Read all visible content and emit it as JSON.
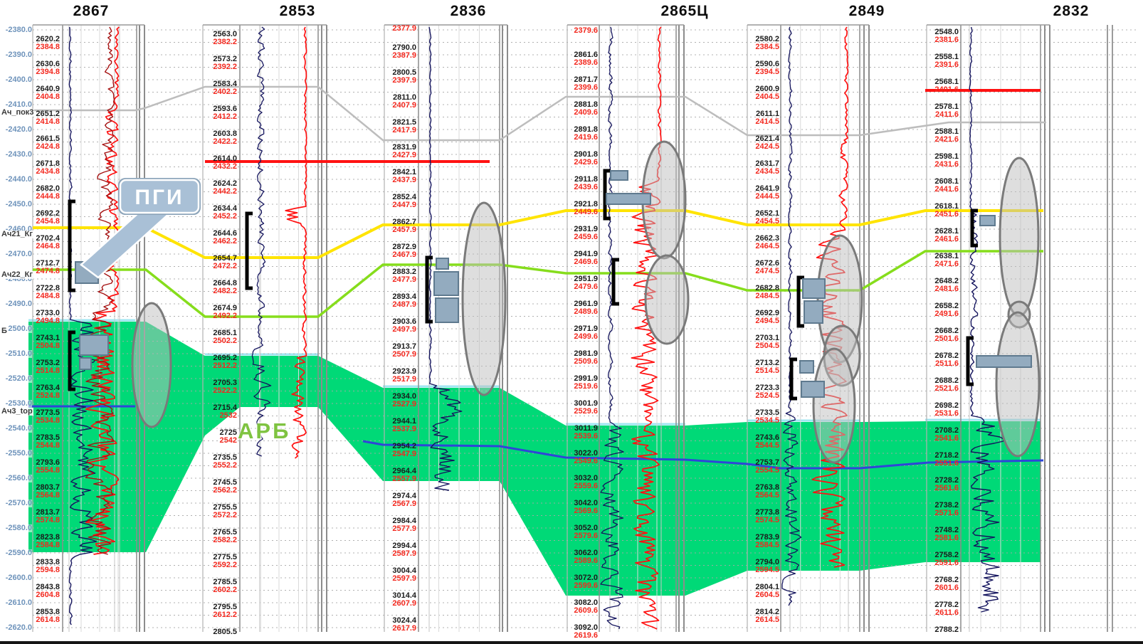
{
  "annotations": {
    "pgi": "ПГИ",
    "arb": "АРБ"
  },
  "depth_scale": [
    "-2380.0",
    "-2390.0",
    "-2400.0",
    "-2410.0",
    "-2420.0",
    "-2430.0",
    "-2440.0",
    "-2450.0",
    "-2460.0",
    "-2470.0",
    "-2480.0",
    "-2490.0",
    "-2500.0",
    "-2510.0",
    "-2520.0",
    "-2530.0",
    "-2540.0",
    "-2550.0",
    "-2560.0",
    "-2570.0",
    "-2580.0",
    "-2590.0",
    "-2600.0",
    "-2610.0",
    "-2620.0"
  ],
  "horizons": [
    "Ач_пок3",
    "Ач21_Кг",
    "Ач22_Кг",
    "Б",
    "Ач3_top"
  ],
  "wells": [
    {
      "name": "2867",
      "top_tvd": "",
      "rows": [
        [
          "2620.2",
          "2384.8"
        ],
        [
          "2630.6",
          "2394.8"
        ],
        [
          "2640.9",
          "2404.8"
        ],
        [
          "2651.2",
          "2414.8"
        ],
        [
          "2661.5",
          "2424.8"
        ],
        [
          "2671.8",
          "2434.8"
        ],
        [
          "2682.0",
          "2444.8"
        ],
        [
          "2692.2",
          "2454.8"
        ],
        [
          "2702.4",
          "2464.8"
        ],
        [
          "2712.7",
          "2474.8"
        ],
        [
          "2722.8",
          "2484.8"
        ],
        [
          "2733.0",
          "2494.8"
        ],
        [
          "2743.1",
          "2504.8"
        ],
        [
          "2753.2",
          "2514.8"
        ],
        [
          "2763.4",
          "2524.8"
        ],
        [
          "2773.5",
          "2534.8"
        ],
        [
          "2783.5",
          "2544.8"
        ],
        [
          "2793.6",
          "2554.8"
        ],
        [
          "2803.7",
          "2564.8"
        ],
        [
          "2813.7",
          "2574.8"
        ],
        [
          "2823.8",
          "2584.8"
        ],
        [
          "2833.8",
          "2594.8"
        ],
        [
          "2843.8",
          "2604.8"
        ],
        [
          "2853.8",
          "2614.8"
        ]
      ]
    },
    {
      "name": "2853",
      "top_tvd": "",
      "rows": [
        [
          "2563.0",
          "2382.2"
        ],
        [
          "2573.2",
          "2392.2"
        ],
        [
          "2583.4",
          "2402.2"
        ],
        [
          "2593.6",
          "2412.2"
        ],
        [
          "2603.8",
          "2422.2"
        ],
        [
          "2614.0",
          "2432.2"
        ],
        [
          "2624.2",
          "2442.2"
        ],
        [
          "2634.4",
          "2452.2"
        ],
        [
          "2644.6",
          "2462.2"
        ],
        [
          "2654.7",
          "2472.2"
        ],
        [
          "2664.8",
          "2482.2"
        ],
        [
          "2674.9",
          "2492.2"
        ],
        [
          "2685.1",
          "2502.2"
        ],
        [
          "2695.2",
          "2512.2"
        ],
        [
          "2705.3",
          "2522.2"
        ],
        [
          "2715.4",
          "2532"
        ],
        [
          "2725",
          "2542"
        ],
        [
          "2735.5",
          "2552.2"
        ],
        [
          "2745.5",
          "2562.2"
        ],
        [
          "2755.5",
          "2572.2"
        ],
        [
          "2765.5",
          "2582.2"
        ],
        [
          "2775.5",
          "2592.2"
        ],
        [
          "2785.5",
          "2602.2"
        ],
        [
          "2795.5",
          "2612.2"
        ],
        [
          "2805.5",
          ""
        ]
      ]
    },
    {
      "name": "2836",
      "top_tvd": "2377.9",
      "rows": [
        [
          "2790.0",
          "2387.9"
        ],
        [
          "2800.5",
          "2397.9"
        ],
        [
          "2811.0",
          "2407.9"
        ],
        [
          "2821.5",
          "2417.9"
        ],
        [
          "2831.9",
          "2427.9"
        ],
        [
          "2842.1",
          "2437.9"
        ],
        [
          "2852.4",
          "2447.9"
        ],
        [
          "2862.7",
          "2457.9"
        ],
        [
          "2872.9",
          "2467.9"
        ],
        [
          "2883.2",
          "2477.9"
        ],
        [
          "2893.4",
          "2487.9"
        ],
        [
          "2903.6",
          "2497.9"
        ],
        [
          "2913.7",
          "2507.9"
        ],
        [
          "2923.9",
          "2517.9"
        ],
        [
          "2934.0",
          "2527.9"
        ],
        [
          "2944.1",
          "2537.9"
        ],
        [
          "2954.2",
          "2547.9"
        ],
        [
          "2964.4",
          "2557.9"
        ],
        [
          "2974.4",
          "2567.9"
        ],
        [
          "2984.4",
          "2577.9"
        ],
        [
          "2994.4",
          "2587.9"
        ],
        [
          "3004.4",
          "2597.9"
        ],
        [
          "3014.4",
          "2607.9"
        ],
        [
          "3024.4",
          "2617.9"
        ]
      ]
    },
    {
      "name": "2865Ц",
      "top_tvd": "2379.6",
      "rows": [
        [
          "2861.6",
          "2389.6"
        ],
        [
          "2871.7",
          "2399.6"
        ],
        [
          "2881.8",
          "2409.6"
        ],
        [
          "2891.8",
          "2419.6"
        ],
        [
          "2901.8",
          "2429.6"
        ],
        [
          "2911.8",
          "2439.6"
        ],
        [
          "2921.8",
          "2449.6"
        ],
        [
          "2931.9",
          "2459.6"
        ],
        [
          "2941.9",
          "2469.6"
        ],
        [
          "2951.9",
          "2479.6"
        ],
        [
          "2961.9",
          "2489.6"
        ],
        [
          "2971.9",
          "2499.6"
        ],
        [
          "2981.9",
          "2509.6"
        ],
        [
          "2991.9",
          "2519.6"
        ],
        [
          "3001.9",
          "2529.6"
        ],
        [
          "3011.9",
          "2539.6"
        ],
        [
          "3022.0",
          "2549.6"
        ],
        [
          "3032.0",
          "2559.6"
        ],
        [
          "3042.0",
          "2569.6"
        ],
        [
          "3052.0",
          "2579.6"
        ],
        [
          "3062.0",
          "2589.6"
        ],
        [
          "3072.0",
          "2599.6"
        ],
        [
          "3082.0",
          "2609.6"
        ],
        [
          "3092.0",
          "2619.6"
        ]
      ]
    },
    {
      "name": "2849",
      "top_tvd": "",
      "rows": [
        [
          "2580.2",
          "2384.5"
        ],
        [
          "2590.6",
          "2394.5"
        ],
        [
          "2600.9",
          "2404.5"
        ],
        [
          "2611.1",
          "2414.5"
        ],
        [
          "2621.4",
          "2424.5"
        ],
        [
          "2631.7",
          "2434.5"
        ],
        [
          "2641.9",
          "2444.5"
        ],
        [
          "2652.1",
          "2454.5"
        ],
        [
          "2662.3",
          "2464.5"
        ],
        [
          "2672.6",
          "2474.5"
        ],
        [
          "2682.8",
          "2484.5"
        ],
        [
          "2692.9",
          "2494.5"
        ],
        [
          "2703.1",
          "2504.5"
        ],
        [
          "2713.2",
          "2514.5"
        ],
        [
          "2723.3",
          "2524.5"
        ],
        [
          "2733.5",
          "2534.5"
        ],
        [
          "2743.6",
          "2544.5"
        ],
        [
          "2753.7",
          "2554.5"
        ],
        [
          "2763.8",
          "2564.5"
        ],
        [
          "2773.8",
          "2574.5"
        ],
        [
          "2783.9",
          "2584.5"
        ],
        [
          "2794.0",
          "2594.5"
        ],
        [
          "2804.1",
          "2604.5"
        ],
        [
          "2814.2",
          "2614.5"
        ]
      ]
    },
    {
      "name": "2832",
      "top_tvd": "",
      "rows": [
        [
          "2548.0",
          "2381.6"
        ],
        [
          "2558.1",
          "2391.6"
        ],
        [
          "2568.1",
          "2401.6"
        ],
        [
          "2578.1",
          "2411.6"
        ],
        [
          "2588.1",
          "2421.6"
        ],
        [
          "2598.1",
          "2431.6"
        ],
        [
          "2608.1",
          "2441.6"
        ],
        [
          "2618.1",
          "2451.6"
        ],
        [
          "2628.1",
          "2461.6"
        ],
        [
          "2638.1",
          "2471.6"
        ],
        [
          "2648.2",
          "2481.6"
        ],
        [
          "2658.2",
          "2491.6"
        ],
        [
          "2668.2",
          "2501.6"
        ],
        [
          "2678.2",
          "2511.6"
        ],
        [
          "2688.2",
          "2521.6"
        ],
        [
          "2698.2",
          "2531.6"
        ],
        [
          "2708.2",
          "2541.6"
        ],
        [
          "2718.2",
          "2551.6"
        ],
        [
          "2728.2",
          "2561.6"
        ],
        [
          "2738.2",
          "2571.6"
        ],
        [
          "2748.2",
          "2581.6"
        ],
        [
          "2758.2",
          "2591.6"
        ],
        [
          "2768.2",
          "2601.6"
        ],
        [
          "2778.2",
          "2611.6"
        ],
        [
          "2788.2",
          ""
        ]
      ]
    }
  ],
  "colors": {
    "green_fill": "#00d977",
    "cyan_edge": "#9fe6f2",
    "yellow_line": "#ffe400",
    "lime_line": "#86dd1c",
    "blue_line": "#2f45d8",
    "red_line": "#ff1212",
    "gray_line": "#bdbdbd",
    "navy_curve": "#15155e",
    "red_curve": "#ff1212",
    "darkred_curve": "#a51212",
    "callout_fill": "#a9c0d6",
    "symbol_fill": "#93abbf",
    "arb_text": "#7fc341"
  }
}
